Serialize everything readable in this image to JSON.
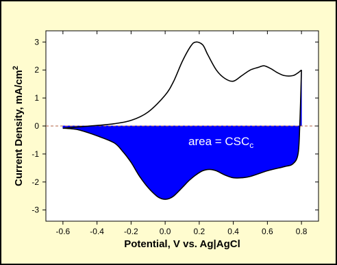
{
  "chart_data": {
    "type": "line",
    "title": "",
    "xlabel": "Potential, V vs. Ag|AgCl",
    "ylabel_text": "Current Density, mA/cm",
    "ylabel_sup": "2",
    "xlim": [
      -0.7,
      0.9
    ],
    "ylim": [
      -3.4,
      3.4
    ],
    "x_ticks": [
      "-0.6",
      "-0.4",
      "-0.2",
      "0.0",
      "0.2",
      "0.4",
      "0.6",
      "0.8"
    ],
    "x_tick_values": [
      -0.6,
      -0.4,
      -0.2,
      0.0,
      0.2,
      0.4,
      0.6,
      0.8
    ],
    "y_ticks": [
      "3",
      "2",
      "1",
      "0",
      "-1",
      "-2",
      "-3"
    ],
    "y_tick_values": [
      3,
      2,
      1,
      0,
      -1,
      -2,
      -3
    ],
    "grid": false,
    "zero_line": {
      "y": 0,
      "style": "dashed",
      "color": "#b06040"
    },
    "annotation": {
      "text": "area = CSC",
      "subscript": "c"
    },
    "series": [
      {
        "role": "anodic",
        "color": "#000000",
        "x": [
          -0.6,
          -0.5,
          -0.4,
          -0.3,
          -0.2,
          -0.1,
          0.0,
          0.05,
          0.1,
          0.15,
          0.18,
          0.22,
          0.25,
          0.3,
          0.35,
          0.4,
          0.45,
          0.5,
          0.55,
          0.58,
          0.62,
          0.66,
          0.7,
          0.75,
          0.78,
          0.8
        ],
        "y": [
          -0.08,
          -0.03,
          0.02,
          0.08,
          0.2,
          0.5,
          1.1,
          1.6,
          2.3,
          2.85,
          3.0,
          2.9,
          2.55,
          2.0,
          1.7,
          1.6,
          1.8,
          2.0,
          2.1,
          2.15,
          2.05,
          1.9,
          1.8,
          1.8,
          1.9,
          2.0
        ]
      },
      {
        "role": "cathodic",
        "color": "#0000ff",
        "fill": true,
        "x": [
          0.8,
          0.79,
          0.78,
          0.75,
          0.7,
          0.6,
          0.5,
          0.45,
          0.4,
          0.35,
          0.3,
          0.26,
          0.22,
          0.18,
          0.14,
          0.1,
          0.05,
          0.02,
          0.0,
          -0.02,
          -0.05,
          -0.1,
          -0.15,
          -0.2,
          -0.25,
          -0.3,
          -0.4,
          -0.5,
          -0.55,
          -0.6
        ],
        "y": [
          2.0,
          0.0,
          -1.0,
          -1.35,
          -1.45,
          -1.6,
          -1.8,
          -1.85,
          -1.85,
          -1.75,
          -1.6,
          -1.55,
          -1.6,
          -1.75,
          -1.95,
          -2.2,
          -2.5,
          -2.6,
          -2.62,
          -2.6,
          -2.5,
          -2.2,
          -1.8,
          -1.3,
          -0.9,
          -0.6,
          -0.35,
          -0.15,
          -0.1,
          -0.08
        ]
      }
    ]
  }
}
